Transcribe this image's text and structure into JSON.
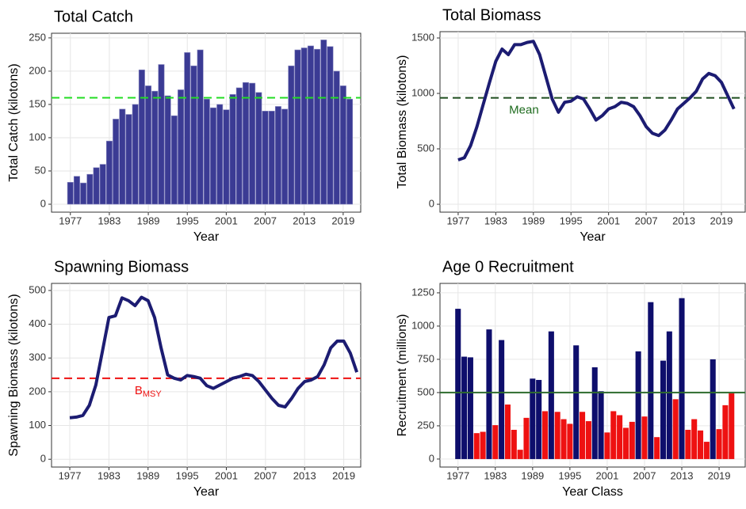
{
  "chart_data": [
    {
      "type": "bar",
      "title": "Total Catch",
      "xlabel": "Year",
      "ylabel": "Total Catch (kilotons)",
      "x": [
        1977,
        1978,
        1979,
        1980,
        1981,
        1982,
        1983,
        1984,
        1985,
        1986,
        1987,
        1988,
        1989,
        1990,
        1991,
        1992,
        1993,
        1994,
        1995,
        1996,
        1997,
        1998,
        1999,
        2000,
        2001,
        2002,
        2003,
        2004,
        2005,
        2006,
        2007,
        2008,
        2009,
        2010,
        2011,
        2012,
        2013,
        2014,
        2015,
        2016,
        2017,
        2018,
        2019,
        2020
      ],
      "series": [
        {
          "color": "#3b3b94",
          "values": [
            33,
            42,
            32,
            45,
            55,
            60,
            95,
            128,
            143,
            135,
            150,
            202,
            178,
            170,
            210,
            163,
            133,
            172,
            228,
            208,
            232,
            158,
            145,
            150,
            142,
            165,
            175,
            183,
            182,
            168,
            140,
            140,
            147,
            143,
            208,
            232,
            235,
            238,
            233,
            247,
            237,
            200,
            178,
            158
          ]
        }
      ],
      "xlim": [
        1974.1,
        2021.7
      ],
      "xticks": [
        1977,
        1983,
        1989,
        1995,
        2001,
        2007,
        2013,
        2019
      ],
      "ylim": [
        -11.9,
        257
      ],
      "yticks": [
        0,
        50,
        100,
        150,
        200,
        250
      ],
      "grid": true,
      "hline": {
        "value": 160,
        "color": "#22dd22",
        "dash": true
      }
    },
    {
      "type": "line",
      "title": "Total Biomass",
      "xlabel": "Year",
      "ylabel": "Total Biomass (kilotons)",
      "x": [
        1977,
        1978,
        1979,
        1980,
        1981,
        1982,
        1983,
        1984,
        1985,
        1986,
        1987,
        1988,
        1989,
        1990,
        1991,
        1992,
        1993,
        1994,
        1995,
        1996,
        1997,
        1998,
        1999,
        2000,
        2001,
        2002,
        2003,
        2004,
        2005,
        2006,
        2007,
        2008,
        2009,
        2010,
        2011,
        2012,
        2013,
        2014,
        2015,
        2016,
        2017,
        2018,
        2019,
        2020,
        2021
      ],
      "series": [
        {
          "color": "#1c1c72",
          "values": [
            400,
            420,
            530,
            700,
            900,
            1100,
            1290,
            1400,
            1350,
            1440,
            1440,
            1460,
            1470,
            1350,
            1150,
            950,
            830,
            920,
            930,
            970,
            950,
            860,
            760,
            800,
            860,
            880,
            920,
            910,
            880,
            800,
            700,
            640,
            620,
            670,
            760,
            860,
            910,
            960,
            1020,
            1130,
            1180,
            1160,
            1100,
            980,
            860
          ]
        }
      ],
      "xlim": [
        1974.1,
        2022.8
      ],
      "xticks": [
        1977,
        1983,
        1989,
        1995,
        2001,
        2007,
        2013,
        2019
      ],
      "ylim": [
        -71,
        1557
      ],
      "yticks": [
        0,
        500,
        1000,
        1500
      ],
      "grid": true,
      "hline": {
        "value": 960,
        "color": "#1e4d1e",
        "dash": true,
        "label": "Mean",
        "label_color": "#1e6b1e"
      }
    },
    {
      "type": "line",
      "title": "Spawning Biomass",
      "xlabel": "Year",
      "ylabel": "Spawning Biomass (kilotons)",
      "x": [
        1977,
        1978,
        1979,
        1980,
        1981,
        1982,
        1983,
        1984,
        1985,
        1986,
        1987,
        1988,
        1989,
        1990,
        1991,
        1992,
        1993,
        1994,
        1995,
        1996,
        1997,
        1998,
        1999,
        2000,
        2001,
        2002,
        2003,
        2004,
        2005,
        2006,
        2007,
        2008,
        2009,
        2010,
        2011,
        2012,
        2013,
        2014,
        2015,
        2016,
        2017,
        2018,
        2019,
        2020,
        2021
      ],
      "series": [
        {
          "color": "#1c1c72",
          "values": [
            123,
            125,
            130,
            160,
            220,
            320,
            420,
            425,
            478,
            470,
            455,
            480,
            470,
            420,
            330,
            250,
            240,
            235,
            248,
            245,
            240,
            218,
            210,
            220,
            230,
            240,
            245,
            252,
            248,
            230,
            205,
            180,
            160,
            155,
            180,
            210,
            230,
            235,
            245,
            280,
            330,
            350,
            350,
            315,
            258
          ]
        }
      ],
      "xlim": [
        1974.2,
        2021.6
      ],
      "xticks": [
        1977,
        1983,
        1989,
        1995,
        2001,
        2007,
        2013,
        2019
      ],
      "ylim": [
        -23,
        521
      ],
      "yticks": [
        0,
        100,
        200,
        300,
        400,
        500
      ],
      "grid": true,
      "hline": {
        "value": 240,
        "color": "#ee1111",
        "dash": true,
        "label": "B",
        "label_sub": "MSY",
        "label_color": "#ee1111"
      }
    },
    {
      "type": "bar",
      "title": "Age 0 Recruitment",
      "xlabel": "Year Class",
      "ylabel": "Recruitment (millions)",
      "x": [
        1977,
        1978,
        1979,
        1980,
        1981,
        1982,
        1983,
        1984,
        1985,
        1986,
        1987,
        1988,
        1989,
        1990,
        1991,
        1992,
        1993,
        1994,
        1995,
        1996,
        1997,
        1998,
        1999,
        2000,
        2001,
        2002,
        2003,
        2004,
        2005,
        2006,
        2007,
        2008,
        2009,
        2010,
        2011,
        2012,
        2013,
        2014,
        2015,
        2016,
        2017,
        2018,
        2019,
        2020,
        2021
      ],
      "series": [
        {
          "color": "#0e0e6c",
          "below_color": "#ee1111",
          "values": [
            1130,
            770,
            765,
            195,
            205,
            975,
            255,
            895,
            410,
            220,
            70,
            310,
            605,
            595,
            360,
            960,
            355,
            300,
            265,
            855,
            355,
            285,
            690,
            510,
            200,
            360,
            330,
            235,
            280,
            810,
            320,
            1180,
            165,
            740,
            960,
            450,
            1210,
            220,
            300,
            215,
            130,
            750,
            225,
            405,
            495
          ]
        }
      ],
      "xlim": [
        1974.1,
        2023.2
      ],
      "xticks": [
        1977,
        1983,
        1989,
        1995,
        2001,
        2007,
        2013,
        2019
      ],
      "ylim": [
        -60,
        1321
      ],
      "yticks": [
        0,
        250,
        500,
        750,
        1000,
        1250
      ],
      "grid": true,
      "hline": {
        "value": 500,
        "color": "#2e6b2e",
        "dash": false
      }
    }
  ]
}
